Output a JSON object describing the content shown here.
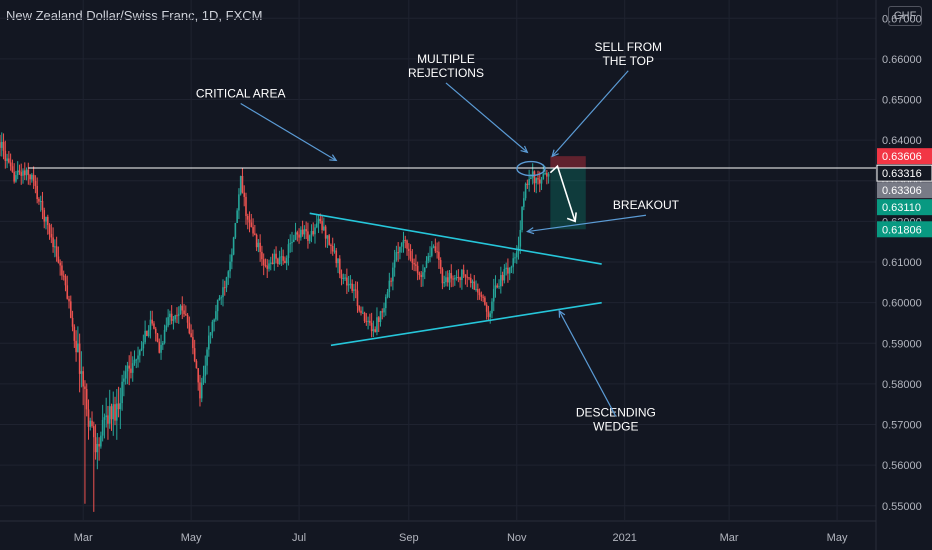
{
  "header": {
    "title": "New Zealand Dollar/Swiss Franc, 1D, FXCM",
    "currency": "CHF"
  },
  "colors": {
    "background": "#131722",
    "up": "#26a69a",
    "down": "#ef5350",
    "trendline": "#26c6da",
    "arrow": "#5b9bd5",
    "level_line": "#ffffff",
    "stop_zone": "#f23645",
    "target_zone": "#089981"
  },
  "chart_data": {
    "type": "candlestick",
    "symbol": "NZDCHF",
    "timeframe": "1D",
    "ylim": [
      0.5465,
      0.6745
    ],
    "y_ticks": [
      0.67,
      0.66,
      0.65,
      0.64,
      0.63,
      0.62,
      0.61,
      0.6,
      0.59,
      0.58,
      0.57,
      0.56,
      0.55
    ],
    "x_ticks": [
      {
        "label": "Mar",
        "day": 47
      },
      {
        "label": "May",
        "day": 108
      },
      {
        "label": "Jul",
        "day": 169
      },
      {
        "label": "Sep",
        "day": 231
      },
      {
        "label": "Nov",
        "day": 292
      },
      {
        "label": "2021",
        "day": 353
      },
      {
        "label": "Mar",
        "day": 412
      },
      {
        "label": "May",
        "day": 473
      }
    ],
    "x_range_days": [
      0,
      495
    ],
    "date_start": "2020-01-14",
    "date_end": "2020-11-20",
    "price_path": [
      [
        0,
        0.6395
      ],
      [
        7,
        0.631
      ],
      [
        12,
        0.632
      ],
      [
        18,
        0.631
      ],
      [
        22,
        0.625
      ],
      [
        30,
        0.615
      ],
      [
        38,
        0.602
      ],
      [
        45,
        0.585
      ],
      [
        50,
        0.572
      ],
      [
        55,
        0.564
      ],
      [
        60,
        0.572
      ],
      [
        66,
        0.574
      ],
      [
        72,
        0.585
      ],
      [
        78,
        0.586
      ],
      [
        85,
        0.596
      ],
      [
        90,
        0.588
      ],
      [
        95,
        0.596
      ],
      [
        100,
        0.598
      ],
      [
        105,
        0.598
      ],
      [
        110,
        0.586
      ],
      [
        113,
        0.577
      ],
      [
        118,
        0.591
      ],
      [
        122,
        0.598
      ],
      [
        127,
        0.605
      ],
      [
        132,
        0.615
      ],
      [
        136,
        0.63
      ],
      [
        140,
        0.62
      ],
      [
        145,
        0.615
      ],
      [
        150,
        0.608
      ],
      [
        155,
        0.611
      ],
      [
        160,
        0.61
      ],
      [
        166,
        0.616
      ],
      [
        171,
        0.618
      ],
      [
        175,
        0.616
      ],
      [
        180,
        0.62
      ],
      [
        184,
        0.617
      ],
      [
        188,
        0.613
      ],
      [
        194,
        0.606
      ],
      [
        200,
        0.603
      ],
      [
        206,
        0.595
      ],
      [
        212,
        0.594
      ],
      [
        217,
        0.6
      ],
      [
        222,
        0.608
      ],
      [
        227,
        0.616
      ],
      [
        232,
        0.612
      ],
      [
        237,
        0.606
      ],
      [
        242,
        0.612
      ],
      [
        246,
        0.613
      ],
      [
        250,
        0.606
      ],
      [
        256,
        0.606
      ],
      [
        262,
        0.607
      ],
      [
        266,
        0.605
      ],
      [
        271,
        0.602
      ],
      [
        276,
        0.597
      ],
      [
        280,
        0.604
      ],
      [
        285,
        0.607
      ],
      [
        290,
        0.61
      ],
      [
        293,
        0.613
      ],
      [
        296,
        0.627
      ],
      [
        300,
        0.632
      ],
      [
        304,
        0.629
      ],
      [
        308,
        0.631
      ],
      [
        310,
        0.632
      ]
    ],
    "series": [
      {
        "name": "NZDCHF",
        "style": "candles"
      }
    ],
    "horizontal_levels": [
      {
        "price": 0.63316,
        "from_day": 16,
        "color": "#ffffff"
      }
    ],
    "trendlines": [
      {
        "points": [
          [
            175,
            0.622
          ],
          [
            340,
            0.6095
          ]
        ],
        "color": "#26c6da"
      },
      {
        "points": [
          [
            187,
            0.5895
          ],
          [
            340,
            0.6
          ]
        ],
        "color": "#26c6da"
      }
    ],
    "position": {
      "type": "short",
      "entry": 0.63306,
      "stop": 0.63606,
      "target": 0.61806,
      "from_day": 311,
      "to_day": 331
    },
    "price_tags": [
      {
        "price": 0.63606,
        "label": "0.63606",
        "bg": "#f23645",
        "fg": "#ffffff"
      },
      {
        "price": 0.63316,
        "label": "0.63316",
        "bg": "#131722",
        "fg": "#ffffff",
        "border": "#ffffff"
      },
      {
        "price": 0.63306,
        "label": "0.63306",
        "bg": "#787b86",
        "fg": "#ffffff"
      },
      {
        "price": 0.6311,
        "label": "0.63110",
        "bg": "#089981",
        "fg": "#ffffff"
      },
      {
        "price": 0.61806,
        "label": "0.61806",
        "bg": "#089981",
        "fg": "#ffffff"
      }
    ],
    "annotations": [
      {
        "lines": [
          "CRITICAL AREA"
        ],
        "anchor": [
          136,
          0.6505
        ],
        "arrow_to": [
          190,
          0.635
        ]
      },
      {
        "lines": [
          "MULTIPLE",
          "REJECTIONS"
        ],
        "anchor": [
          252,
          0.659
        ],
        "arrow_to": [
          298,
          0.637
        ]
      },
      {
        "lines": [
          "SELL FROM",
          "THE TOP"
        ],
        "anchor": [
          355,
          0.662
        ],
        "arrow_to": [
          312,
          0.636
        ]
      },
      {
        "lines": [
          "BREAKOUT"
        ],
        "anchor": [
          365,
          0.623
        ],
        "arrow_to": [
          298,
          0.6175
        ]
      },
      {
        "lines": [
          "DESCENDING",
          "WEDGE"
        ],
        "anchor": [
          348,
          0.572
        ],
        "arrow_to": [
          316,
          0.598
        ]
      }
    ]
  }
}
